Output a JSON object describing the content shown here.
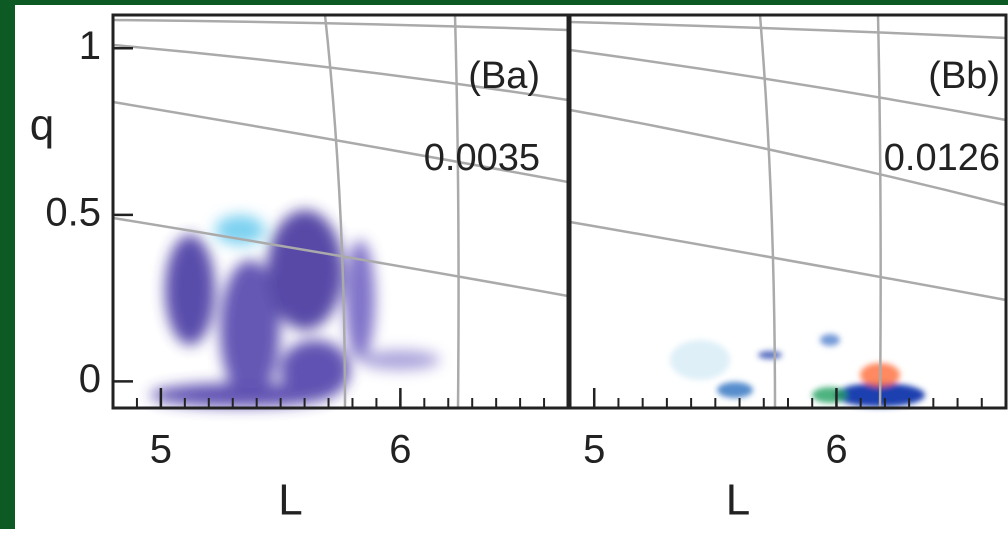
{
  "chart_data": [
    {
      "type": "image",
      "annotations": [
        "(Ba)",
        "0.0035"
      ],
      "xlabel": "L",
      "ylabel": "q",
      "xlim": [
        4.8,
        6.7
      ],
      "xticks": [
        5,
        6
      ],
      "ylim": [
        -0.08,
        1.1
      ],
      "yticks": [
        0,
        0.5,
        1
      ]
    },
    {
      "type": "image",
      "annotations": [
        "(Bb)",
        "0.0126"
      ],
      "xlabel": "L",
      "xlim": [
        4.9,
        6.7
      ],
      "xticks": [
        5,
        6
      ]
    }
  ]
}
